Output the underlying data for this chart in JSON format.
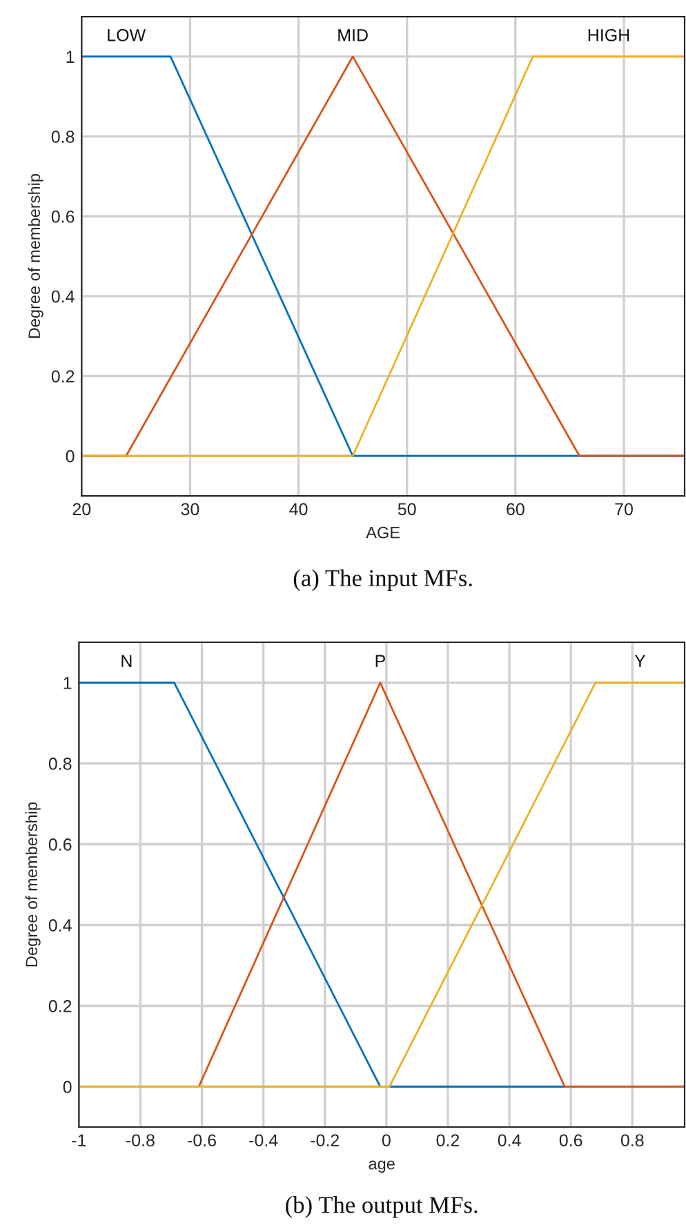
{
  "chart_data": [
    {
      "type": "line",
      "xlabel": "AGE",
      "ylabel": "Degree of membership",
      "xlim": [
        20,
        75.6
      ],
      "ylim": [
        -0.1,
        1.1
      ],
      "xticks": [
        20,
        30,
        40,
        50,
        60,
        70
      ],
      "yticks": [
        0,
        0.2,
        0.4,
        0.6,
        0.8,
        1
      ],
      "grid": true,
      "line_style": "solid",
      "series": [
        {
          "name": "LOW",
          "color": "#0072bd",
          "x": [
            20,
            28.2,
            45,
            75.6
          ],
          "values": [
            1,
            1,
            0,
            0
          ]
        },
        {
          "name": "MID",
          "color": "#d95319",
          "x": [
            20,
            24.1,
            45,
            65.9,
            75.6
          ],
          "values": [
            0,
            0,
            1,
            0,
            0
          ]
        },
        {
          "name": "HIGH",
          "color": "#edb120",
          "x": [
            20,
            45,
            61.6,
            75.6
          ],
          "values": [
            0,
            0,
            1,
            1
          ]
        }
      ],
      "annotations": [
        "(a) The input MFs."
      ]
    },
    {
      "type": "line",
      "xlabel": "age",
      "ylabel": "Degree of membership",
      "xlim": [
        -1,
        0.97
      ],
      "ylim": [
        -0.1,
        1.1
      ],
      "xticks": [
        -1,
        -0.8,
        -0.6,
        -0.4,
        -0.2,
        0,
        0.2,
        0.4,
        0.6,
        0.8
      ],
      "yticks": [
        0,
        0.2,
        0.4,
        0.6,
        0.8,
        1
      ],
      "grid": true,
      "line_style": "solid",
      "series": [
        {
          "name": "N",
          "color": "#0072bd",
          "x": [
            -1,
            -0.69,
            -0.02,
            0.97
          ],
          "values": [
            1,
            1,
            0,
            0
          ]
        },
        {
          "name": "P",
          "color": "#d95319",
          "x": [
            -1,
            -0.61,
            -0.02,
            0.58,
            0.97
          ],
          "values": [
            0,
            0,
            1,
            0,
            0
          ]
        },
        {
          "name": "Y",
          "color": "#edb120",
          "x": [
            -1,
            0.01,
            0.68,
            0.97
          ],
          "values": [
            0,
            0,
            1,
            1
          ]
        }
      ],
      "annotations": [
        "(b) The output MFs."
      ]
    }
  ]
}
